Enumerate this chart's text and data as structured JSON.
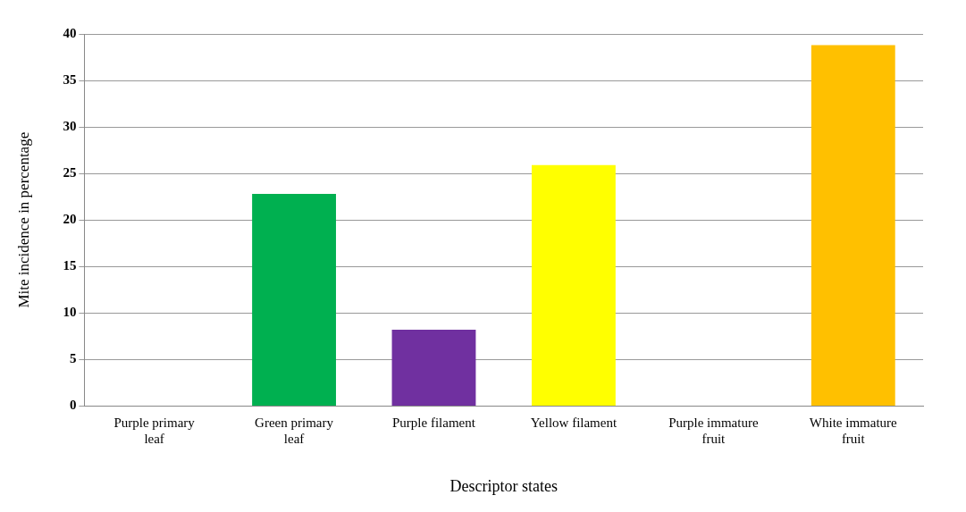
{
  "chart_data": {
    "type": "bar",
    "xlabel": "Descriptor states",
    "ylabel": "Mite incidence in percentage",
    "categories": [
      "Purple primary leaf",
      "Green primary leaf",
      "Purple filament",
      "Yellow filament",
      "Purple immature fruit",
      "White immature fruit"
    ],
    "values": [
      0,
      22.8,
      8.2,
      25.9,
      0,
      38.8
    ],
    "colors": [
      "#4b1f6f",
      "#00b050",
      "#7030a0",
      "#ffff00",
      "#4b1f6f",
      "#ffc000"
    ],
    "ylim": [
      0,
      40
    ],
    "yticks": [
      0,
      5,
      10,
      15,
      20,
      25,
      30,
      35,
      40
    ],
    "grid": "y",
    "legend": false
  }
}
